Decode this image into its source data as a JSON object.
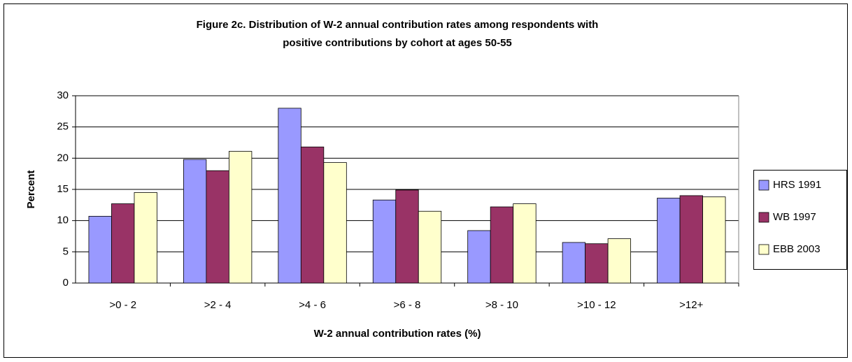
{
  "chart_data": {
    "type": "bar",
    "title": [
      "Figure 2c. Distribution of W-2 annual contribution rates among respondents with",
      "positive contributions by cohort at ages 50-55"
    ],
    "x_label": "W-2 annual contribution rates (%)",
    "y_label": "Percent",
    "categories": [
      ">0 - 2",
      ">2 - 4",
      ">4 - 6",
      ">6 - 8",
      ">8 - 10",
      ">10 - 12",
      ">12+"
    ],
    "series": [
      {
        "name": "HRS 1991",
        "color": "#9999ff",
        "values": [
          10.7,
          19.8,
          28.0,
          13.3,
          8.4,
          6.5,
          13.6
        ]
      },
      {
        "name": "WB 1997",
        "color": "#993366",
        "values": [
          12.7,
          18.0,
          21.8,
          14.9,
          12.2,
          6.3,
          14.0
        ]
      },
      {
        "name": "EBB 2003",
        "color": "#ffffcc",
        "values": [
          14.5,
          21.1,
          19.3,
          11.5,
          12.7,
          7.1,
          13.8
        ]
      }
    ],
    "ylim": [
      0,
      30
    ],
    "yticks": [
      0,
      5,
      10,
      15,
      20,
      25,
      30
    ],
    "grid": true,
    "legend": "right"
  }
}
